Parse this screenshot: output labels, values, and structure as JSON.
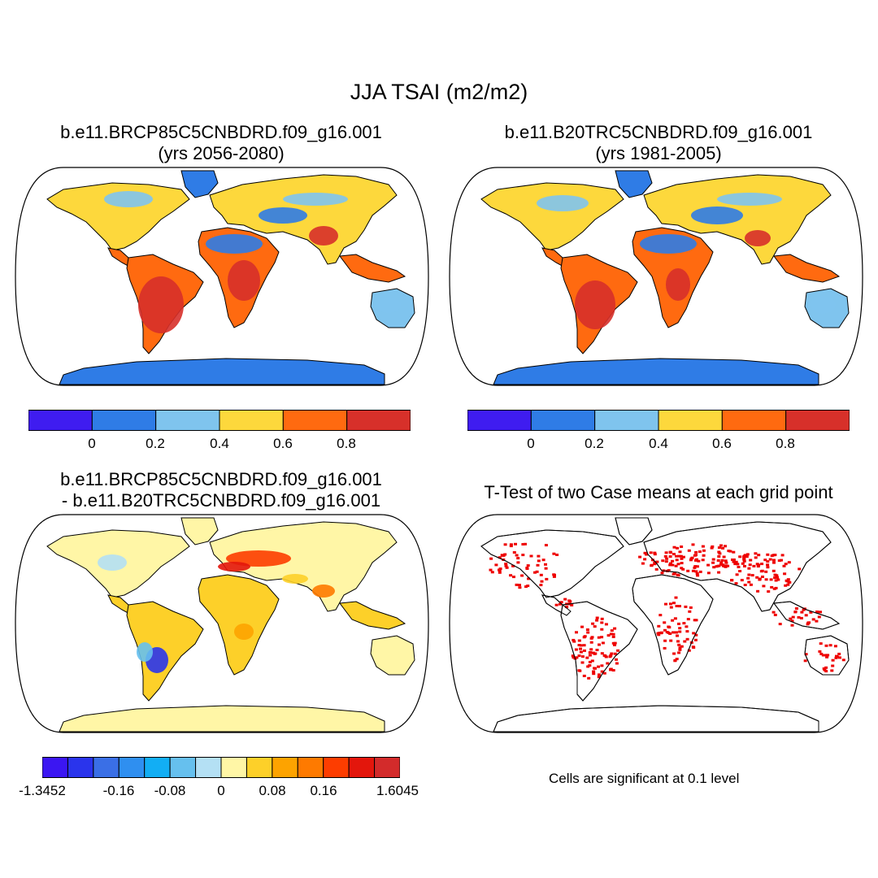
{
  "figure_title": "JJA TSAI (m2/m2)",
  "panels": [
    {
      "id": "p1",
      "line1": "b.e11.BRCP85C5CNBDRD.f09_g16.001",
      "line2": "(yrs 2056-2080)"
    },
    {
      "id": "p2",
      "line1": "b.e11.B20TRC5CNBDRD.f09_g16.001",
      "line2": "(yrs 1981-2005)"
    },
    {
      "id": "p3",
      "line1": "b.e11.BRCP85C5CNBDRD.f09_g16.001",
      "line2": "- b.e11.B20TRC5CNBDRD.f09_g16.001"
    },
    {
      "id": "p4",
      "line1": "T-Test of two Case means at each grid point",
      "line2": ""
    }
  ],
  "significance_note": "Cells are significant at 0.1 level",
  "chart_data": [
    {
      "type": "heatmap",
      "panel": "p1",
      "title": "b.e11.BRCP85C5CNBDRD.f09_g16.001 (yrs 2056-2080)",
      "variable": "TSAI (m2/m2)",
      "season": "JJA",
      "years": "2056-2080",
      "colorbar": {
        "levels": [
          "0",
          "0.2",
          "0.4",
          "0.6",
          "0.8"
        ],
        "colors": [
          "#3f1cf0",
          "#2f7ce6",
          "#7fc4ee",
          "#fdd83c",
          "#ff6a10",
          "#d7302a"
        ]
      }
    },
    {
      "type": "heatmap",
      "panel": "p2",
      "title": "b.e11.B20TRC5CNBDRD.f09_g16.001 (yrs 1981-2005)",
      "variable": "TSAI (m2/m2)",
      "season": "JJA",
      "years": "1981-2005",
      "colorbar": {
        "levels": [
          "0",
          "0.2",
          "0.4",
          "0.6",
          "0.8"
        ],
        "colors": [
          "#3f1cf0",
          "#2f7ce6",
          "#7fc4ee",
          "#fdd83c",
          "#ff6a10",
          "#d7302a"
        ]
      }
    },
    {
      "type": "heatmap",
      "panel": "p3",
      "title": "b.e11.BRCP85C5CNBDRD.f09_g16.001 - b.e11.B20TRC5CNBDRD.f09_g16.001",
      "variable": "TSAI difference (m2/m2)",
      "colorbar": {
        "min_label": "-1.3452",
        "max_label": "1.6045",
        "levels": [
          "-0.16",
          "-0.08",
          "0",
          "0.08",
          "0.16"
        ],
        "colors": [
          "#3b16f2",
          "#2a34ec",
          "#3a6fe6",
          "#2f8ff0",
          "#12aef4",
          "#66c0ee",
          "#b4e0f4",
          "#fff6a6",
          "#fdd029",
          "#fda300",
          "#fe7a00",
          "#fd3d00",
          "#e3160c",
          "#d32b2b"
        ]
      }
    },
    {
      "type": "heatmap",
      "panel": "p4",
      "title": "T-Test of two Case means at each grid point",
      "significance_level": "0.1",
      "colors": {
        "significant": "#ee0000",
        "background": "#ffffff"
      }
    }
  ]
}
